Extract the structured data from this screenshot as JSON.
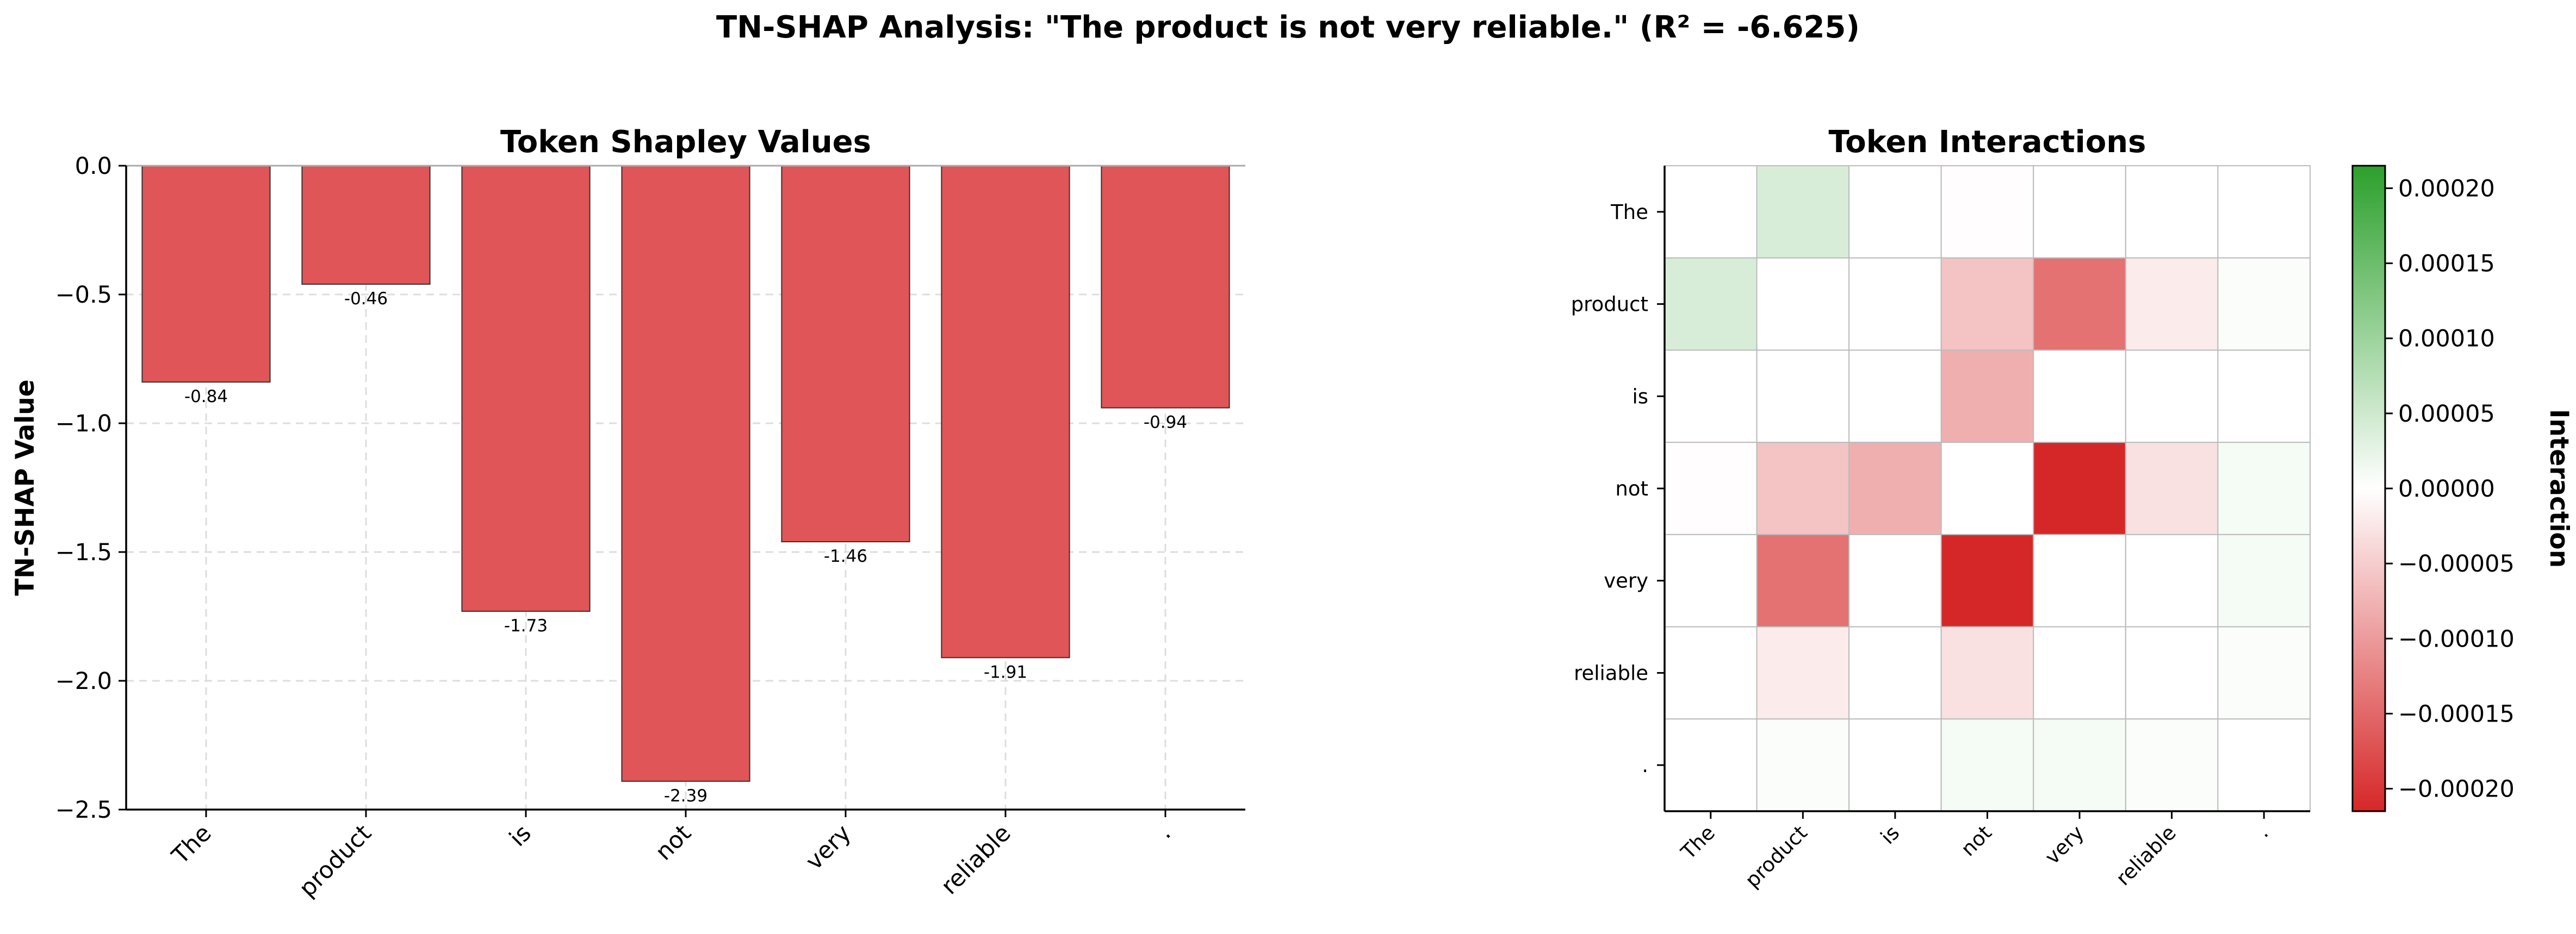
{
  "suptitle": "TN-SHAP Analysis: \"The product is not very reliable.\" (R² = -6.625)",
  "colors": {
    "bar_fill": "#e05558",
    "bar_edge": "#333333",
    "heat_negative": "#d62728",
    "heat_positive": "#2ca02c",
    "heat_zero": "#ffffff",
    "grid": "#dddddd"
  },
  "chart_data": [
    {
      "type": "bar",
      "title": "Token Shapley Values",
      "xlabel": "",
      "ylabel": "TN-SHAP Value",
      "categories": [
        "The",
        "product",
        "is",
        "not",
        "very",
        "reliable",
        "."
      ],
      "values": [
        -0.84,
        -0.46,
        -1.73,
        -2.39,
        -1.46,
        -1.91,
        -0.94
      ],
      "value_labels": [
        "-0.84",
        "-0.46",
        "-1.73",
        "-2.39",
        "-1.46",
        "-1.91",
        "-0.94"
      ],
      "ylim": [
        -2.5,
        0.0
      ],
      "yticks": [
        0.0,
        -0.5,
        -1.0,
        -1.5,
        -2.0,
        -2.5
      ],
      "ytick_labels": [
        "0.0",
        "−0.5",
        "−1.0",
        "−1.5",
        "−2.0",
        "−2.5"
      ],
      "grid": true
    },
    {
      "type": "heatmap",
      "title": "Token Interactions",
      "rows": [
        "The",
        "product",
        "is",
        "not",
        "very",
        "reliable",
        "."
      ],
      "cols": [
        "The",
        "product",
        "is",
        "not",
        "very",
        "reliable",
        "."
      ],
      "values": [
        [
          0,
          4e-05,
          0,
          -2e-06,
          0,
          0,
          0
        ],
        [
          4e-05,
          0,
          0,
          -6e-05,
          -0.00014,
          -2e-05,
          5e-06
        ],
        [
          0,
          0,
          0,
          -8e-05,
          0,
          0,
          0
        ],
        [
          -2e-06,
          -6e-05,
          -8e-05,
          0,
          -0.000215,
          -3e-05,
          1e-05
        ],
        [
          0,
          -0.00014,
          0,
          -0.000215,
          0,
          0,
          1e-05
        ],
        [
          0,
          -2e-05,
          0,
          -3e-05,
          0,
          0,
          5e-06
        ],
        [
          0,
          5e-06,
          0,
          1e-05,
          1e-05,
          5e-06,
          0
        ]
      ],
      "vlim": [
        -0.000215,
        0.000215
      ],
      "colorbar_label": "Interaction",
      "colorbar_ticks": [
        0.0002,
        0.00015,
        0.0001,
        5e-05,
        0.0,
        -5e-05,
        -0.0001,
        -0.00015,
        -0.0002
      ],
      "colorbar_tick_labels": [
        "0.00020",
        "0.00015",
        "0.00010",
        "0.00005",
        "0.00000",
        "−0.00005",
        "−0.00010",
        "−0.00015",
        "−0.00020"
      ]
    }
  ]
}
